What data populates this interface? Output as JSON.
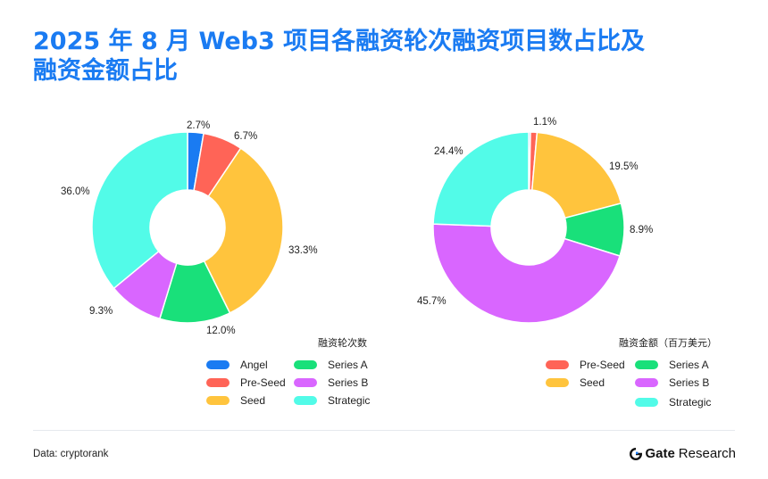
{
  "title_line1": "2025 年 8 月 Web3 项目各融资轮次融资项目数占比及",
  "title_line2": "融资金额占比",
  "chart_data": [
    {
      "type": "pie",
      "title": "融资轮次数",
      "categories": [
        "Angel",
        "Pre-Seed",
        "Seed",
        "Series A",
        "Series B",
        "Strategic"
      ],
      "values": [
        2.7,
        6.7,
        33.3,
        12.0,
        9.3,
        36.0
      ],
      "labels": [
        "2.7%",
        "6.7%",
        "33.3%",
        "12.0%",
        "9.3%",
        "36.0%"
      ],
      "colors": [
        "#1a7bf2",
        "#ff6457",
        "#ffc43d",
        "#19e07a",
        "#d966ff",
        "#52fbe8"
      ],
      "legend_placement": "bottom-right"
    },
    {
      "type": "pie",
      "title": "融资金额（百万美元）",
      "categories": [
        "Angel",
        "Pre-Seed",
        "Seed",
        "Series A",
        "Series B",
        "Strategic"
      ],
      "values": [
        0.3,
        1.1,
        19.5,
        8.9,
        45.7,
        24.4
      ],
      "labels": [
        "",
        "1.1%",
        "19.5%",
        "8.9%",
        "45.7%",
        "24.4%"
      ],
      "colors": [
        "#1a7bf2",
        "#ff6457",
        "#ffc43d",
        "#19e07a",
        "#d966ff",
        "#52fbe8"
      ],
      "legend_categories": [
        "Pre-Seed",
        "Seed",
        "Series A",
        "Series B",
        "Strategic"
      ],
      "legend_placement": "bottom-right"
    }
  ],
  "footer": {
    "source": "Data: cryptorank",
    "brand_gate": "Gate",
    "brand_research": "Research"
  }
}
